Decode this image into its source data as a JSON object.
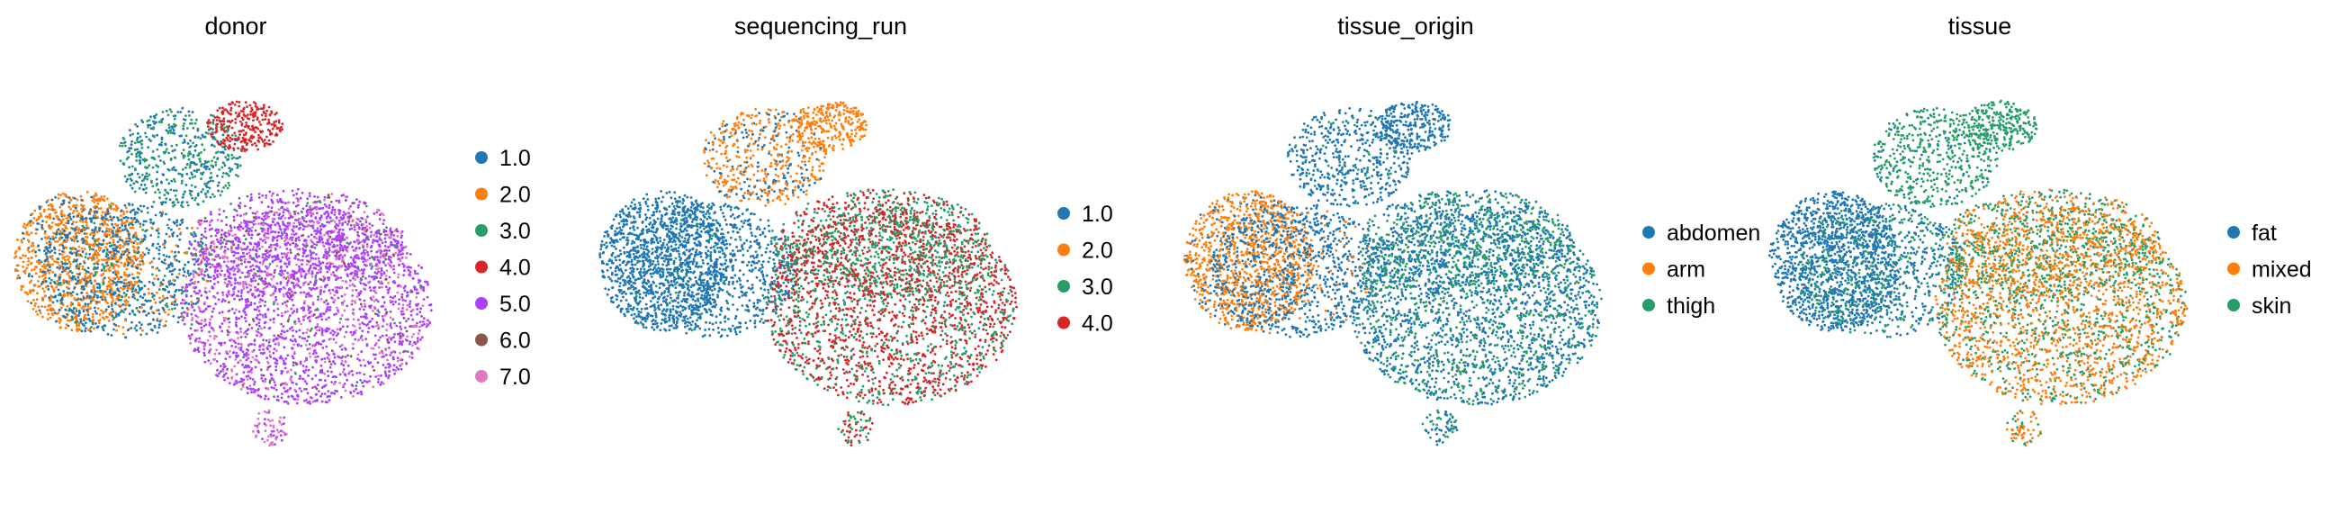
{
  "chart_data": [
    {
      "type": "scatter",
      "title": "donor",
      "xlabel": "",
      "ylabel": "",
      "grid": false,
      "legend_position": "right",
      "legend": [
        {
          "label": "1.0",
          "color": "#1f77b4"
        },
        {
          "label": "2.0",
          "color": "#ff7f0e"
        },
        {
          "label": "3.0",
          "color": "#279e68"
        },
        {
          "label": "4.0",
          "color": "#d62728"
        },
        {
          "label": "5.0",
          "color": "#aa40fc"
        },
        {
          "label": "6.0",
          "color": "#8c564b"
        },
        {
          "label": "7.0",
          "color": "#e377c2"
        }
      ]
    },
    {
      "type": "scatter",
      "title": "sequencing_run",
      "xlabel": "",
      "ylabel": "",
      "grid": false,
      "legend_position": "right",
      "legend": [
        {
          "label": "1.0",
          "color": "#1f77b4"
        },
        {
          "label": "2.0",
          "color": "#ff7f0e"
        },
        {
          "label": "3.0",
          "color": "#279e68"
        },
        {
          "label": "4.0",
          "color": "#d62728"
        }
      ]
    },
    {
      "type": "scatter",
      "title": "tissue_origin",
      "xlabel": "",
      "ylabel": "",
      "grid": false,
      "legend_position": "right",
      "legend": [
        {
          "label": "abdomen",
          "color": "#1f77b4"
        },
        {
          "label": "arm",
          "color": "#ff7f0e"
        },
        {
          "label": "thigh",
          "color": "#279e68"
        }
      ]
    },
    {
      "type": "scatter",
      "title": "tissue",
      "xlabel": "",
      "ylabel": "",
      "grid": false,
      "legend_position": "right",
      "legend": [
        {
          "label": "fat",
          "color": "#1f77b4"
        },
        {
          "label": "mixed",
          "color": "#ff7f0e"
        },
        {
          "label": "skin",
          "color": "#279e68"
        }
      ]
    }
  ]
}
